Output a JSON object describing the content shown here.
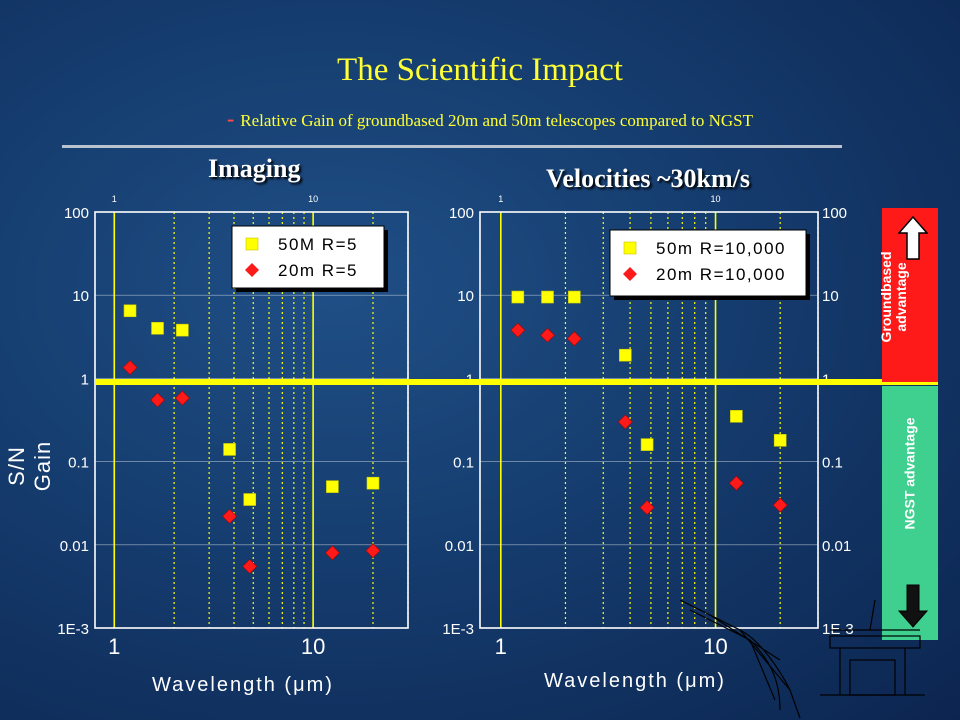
{
  "slide": {
    "title": "The Scientific Impact",
    "subtitle_dash": "-",
    "subtitle": "Relative Gain of groundbased 20m and 50m telescopes compared to NGST",
    "y_axis_label": "S/N Gain"
  },
  "sidebar": {
    "groundbased_label_line1": "Groundbased",
    "groundbased_label_line2": "advantage",
    "ngst_label": "NGST advantage",
    "groundbased_color": "#ff1a1a",
    "ngst_color": "#3fcf8e"
  },
  "colors": {
    "square": "#ffff00",
    "diamond": "#ff1a1a",
    "unity_line": "#ffff00",
    "grid": "#ffff00"
  },
  "chart_data": [
    {
      "type": "scatter",
      "title": "Imaging",
      "xlabel": "Wavelength (μm)",
      "ylabel": "S/N Gain",
      "x_scale": "log",
      "y_scale": "log",
      "xlim": [
        0.8,
        30
      ],
      "ylim": [
        0.001,
        100
      ],
      "x_ticks": [
        "1",
        "10"
      ],
      "y_ticks": [
        "1E-3",
        "0.01",
        "0.1",
        "1",
        "10",
        "100"
      ],
      "series": [
        {
          "name": "50M  R=5",
          "marker": "square",
          "x": [
            1.2,
            1.65,
            2.2,
            3.8,
            4.8,
            12.5,
            20
          ],
          "y": [
            6.5,
            4.0,
            3.8,
            0.14,
            0.035,
            0.05,
            0.055
          ]
        },
        {
          "name": "20m  R=5",
          "marker": "diamond",
          "x": [
            1.2,
            1.65,
            2.2,
            3.8,
            4.8,
            12.5,
            20
          ],
          "y": [
            1.35,
            0.55,
            0.58,
            0.022,
            0.0055,
            0.008,
            0.0085
          ]
        }
      ]
    },
    {
      "type": "scatter",
      "title": "Velocities ~30km/s",
      "xlabel": "Wavelength (μm)",
      "ylabel": "S/N Gain",
      "x_scale": "log",
      "y_scale": "log",
      "xlim": [
        0.8,
        30
      ],
      "ylim": [
        0.001,
        100
      ],
      "x_ticks": [
        "1",
        "10"
      ],
      "y_ticks": [
        "1E-3",
        "0.01",
        "0.1",
        "1",
        "10",
        "100"
      ],
      "series": [
        {
          "name": "50m  R=10,000",
          "marker": "square",
          "x": [
            1.2,
            1.65,
            2.2,
            3.8,
            4.8,
            12.5,
            20
          ],
          "y": [
            9.5,
            9.5,
            9.5,
            1.9,
            0.16,
            0.35,
            0.18
          ]
        },
        {
          "name": "20m  R=10,000",
          "marker": "diamond",
          "x": [
            1.2,
            1.65,
            2.2,
            3.8,
            4.8,
            12.5,
            20
          ],
          "y": [
            3.8,
            3.3,
            3.0,
            0.3,
            0.028,
            0.055,
            0.03
          ]
        }
      ]
    }
  ]
}
